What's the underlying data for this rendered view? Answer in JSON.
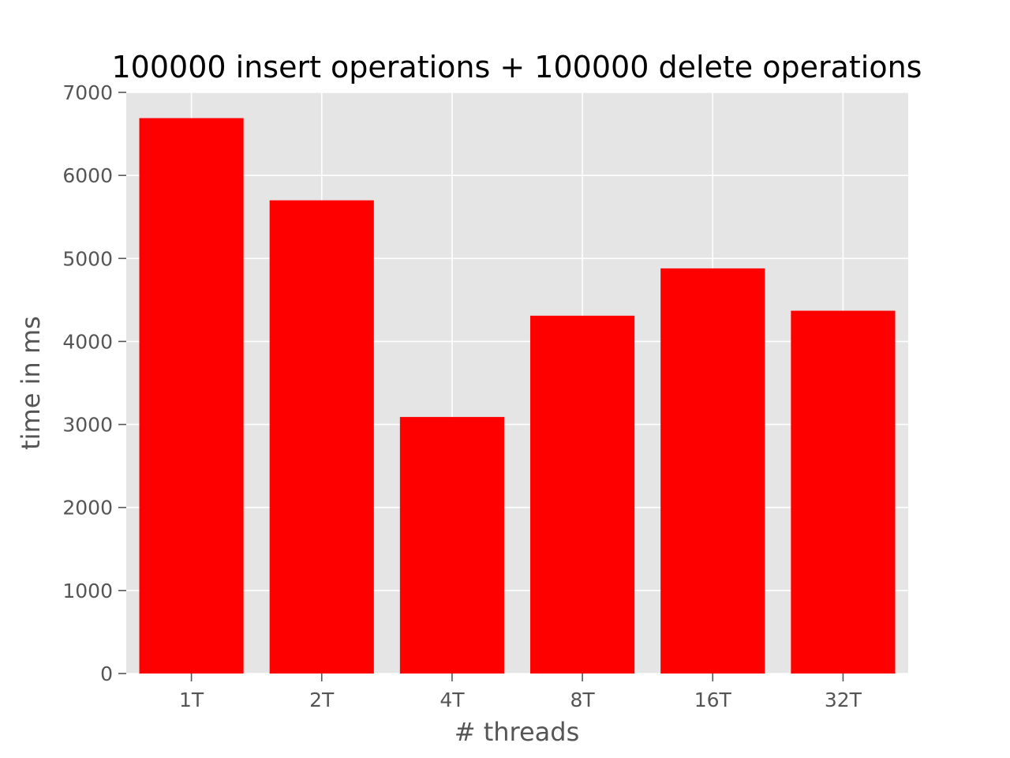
{
  "chart_data": {
    "type": "bar",
    "title": "100000 insert operations + 100000 delete operations",
    "xlabel": "# threads",
    "ylabel": "time in ms",
    "categories": [
      "1T",
      "2T",
      "4T",
      "8T",
      "16T",
      "32T"
    ],
    "values": [
      6690,
      5700,
      3090,
      4310,
      4880,
      4370
    ],
    "ylim": [
      0,
      7000
    ],
    "yticks": [
      "0",
      "1000",
      "2000",
      "3000",
      "4000",
      "5000",
      "6000",
      "7000"
    ],
    "grid": true,
    "style": "ggplot",
    "colors": {
      "bar": "#ff0000",
      "plot_background": "#e5e5e5",
      "grid": "#ffffff",
      "tick_text": "#555555",
      "title_text": "#000000"
    }
  }
}
